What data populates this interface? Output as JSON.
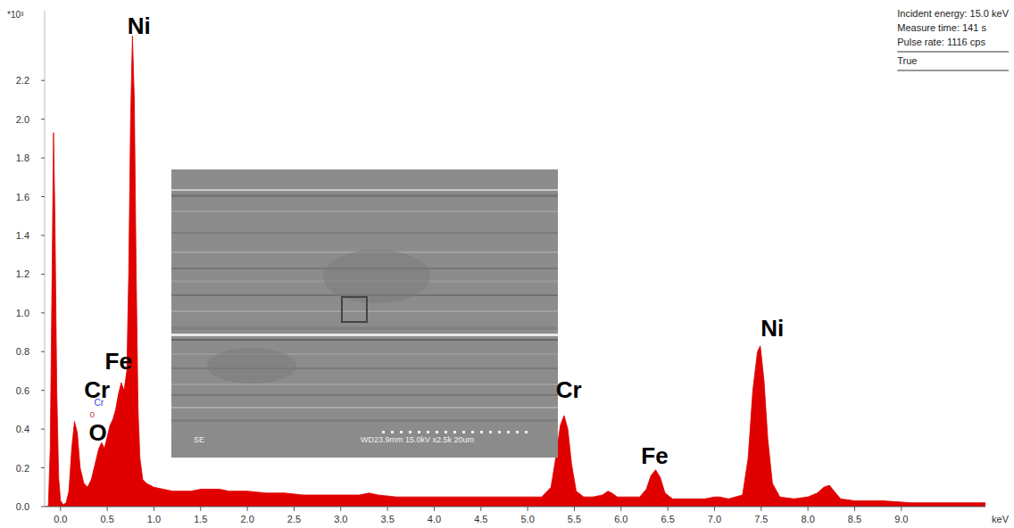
{
  "chart_data": {
    "type": "area",
    "color": "#e00000",
    "ylabel": "*10³",
    "xlabel": "keV",
    "xlim": [
      -0.17,
      9.9
    ],
    "ylim": [
      0,
      2.56
    ],
    "xticks": [
      {
        "value": 0,
        "label": "0.0"
      },
      0.5,
      {
        "value": 1,
        "label": "1.0"
      },
      1.5,
      {
        "value": 2,
        "label": "2.0"
      },
      2.5,
      {
        "value": 3,
        "label": "3.0"
      },
      3.5,
      {
        "value": 4,
        "label": "4.0"
      },
      4.5,
      {
        "value": 5,
        "label": "5.0"
      },
      5.5,
      {
        "value": 6,
        "label": "6.0"
      },
      6.5,
      {
        "value": 7,
        "label": "7.0"
      },
      7.5,
      {
        "value": 8,
        "label": "8.0"
      },
      8.5,
      {
        "value": 9,
        "label": "9.0"
      }
    ],
    "yticks": [
      {
        "value": 0,
        "label": "0.0"
      },
      0.2,
      0.4,
      0.6,
      0.8,
      {
        "value": 1,
        "label": "1.0"
      },
      1.2,
      1.4,
      1.6,
      1.8,
      {
        "value": 2,
        "label": "2.0"
      },
      2.2
    ],
    "grid": false,
    "x": [
      -0.17,
      -0.13,
      -0.11,
      -0.09,
      -0.075,
      -0.06,
      -0.04,
      -0.02,
      0.0,
      0.03,
      0.06,
      0.09,
      0.12,
      0.15,
      0.18,
      0.21,
      0.25,
      0.29,
      0.33,
      0.37,
      0.41,
      0.44,
      0.47,
      0.5,
      0.53,
      0.56,
      0.59,
      0.62,
      0.65,
      0.68,
      0.71,
      0.73,
      0.75,
      0.77,
      0.79,
      0.81,
      0.83,
      0.85,
      0.88,
      0.92,
      1.0,
      1.1,
      1.2,
      1.3,
      1.4,
      1.5,
      1.6,
      1.7,
      1.8,
      1.9,
      2.0,
      2.2,
      2.4,
      2.6,
      2.8,
      3.0,
      3.2,
      3.3,
      3.4,
      3.6,
      3.8,
      4.0,
      4.2,
      4.4,
      4.6,
      4.8,
      5.0,
      5.15,
      5.25,
      5.3,
      5.35,
      5.39,
      5.43,
      5.47,
      5.52,
      5.6,
      5.7,
      5.8,
      5.86,
      5.9,
      5.96,
      6.05,
      6.2,
      6.27,
      6.32,
      6.37,
      6.42,
      6.47,
      6.55,
      6.7,
      6.9,
      7.0,
      7.05,
      7.15,
      7.3,
      7.36,
      7.41,
      7.46,
      7.49,
      7.53,
      7.57,
      7.62,
      7.7,
      7.85,
      8.0,
      8.1,
      8.17,
      8.23,
      8.28,
      8.35,
      8.5,
      8.8,
      9.1,
      9.5,
      9.9
    ],
    "values": [
      0,
      0,
      0.3,
      1.2,
      1.93,
      1.5,
      0.6,
      0.15,
      0.03,
      0.01,
      0.02,
      0.08,
      0.3,
      0.44,
      0.38,
      0.2,
      0.12,
      0.1,
      0.14,
      0.22,
      0.3,
      0.33,
      0.3,
      0.36,
      0.42,
      0.45,
      0.5,
      0.58,
      0.64,
      0.6,
      0.7,
      1.2,
      2.0,
      2.43,
      2.1,
      1.2,
      0.5,
      0.25,
      0.14,
      0.12,
      0.1,
      0.09,
      0.08,
      0.08,
      0.08,
      0.09,
      0.09,
      0.09,
      0.08,
      0.08,
      0.08,
      0.07,
      0.07,
      0.06,
      0.06,
      0.06,
      0.06,
      0.07,
      0.06,
      0.05,
      0.05,
      0.05,
      0.05,
      0.05,
      0.05,
      0.05,
      0.05,
      0.05,
      0.1,
      0.25,
      0.42,
      0.47,
      0.4,
      0.22,
      0.08,
      0.05,
      0.05,
      0.06,
      0.08,
      0.07,
      0.05,
      0.05,
      0.05,
      0.09,
      0.16,
      0.19,
      0.15,
      0.07,
      0.04,
      0.04,
      0.04,
      0.05,
      0.05,
      0.04,
      0.06,
      0.25,
      0.6,
      0.8,
      0.83,
      0.65,
      0.35,
      0.12,
      0.05,
      0.04,
      0.05,
      0.07,
      0.1,
      0.11,
      0.08,
      0.04,
      0.03,
      0.03,
      0.02,
      0.02,
      0.02
    ],
    "peak_labels": [
      {
        "text": "Ni",
        "x": 0.84,
        "y": 2.44
      },
      {
        "text": "Fe",
        "x": 0.62,
        "y": 0.71
      },
      {
        "text": "Cr",
        "x": 0.39,
        "y": 0.56
      },
      {
        "text": "O",
        "x": 0.4,
        "y": 0.34
      },
      {
        "text": "Cr",
        "x": 5.44,
        "y": 0.56
      },
      {
        "text": "Fe",
        "x": 6.36,
        "y": 0.22
      },
      {
        "text": "Ni",
        "x": 7.62,
        "y": 0.88
      }
    ],
    "small_labels": [
      {
        "text": "Cr",
        "x": 0.41,
        "y": 0.52,
        "color": "#3a3ad0"
      },
      {
        "text": "o",
        "x": 0.34,
        "y": 0.46,
        "color": "#c04040"
      }
    ],
    "info": [
      "Incident energy: 15.0 keV",
      "Measure time: 141 s",
      "Pulse rate: 1116 cps",
      "True"
    ],
    "inset": {
      "texts": [
        "SE",
        "WD23.9mm 15.0kV x2.5k 20um"
      ]
    }
  }
}
